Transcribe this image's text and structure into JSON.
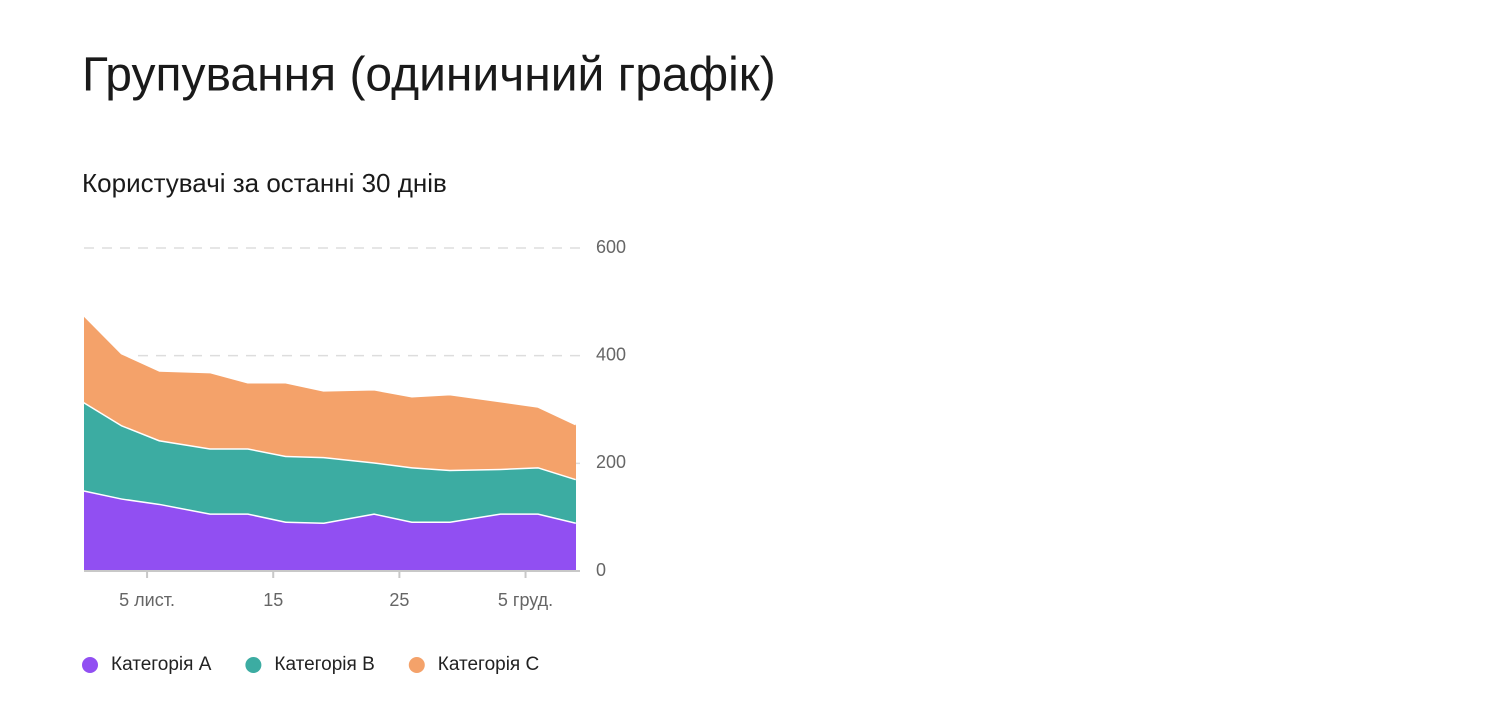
{
  "page_title": "Групування (одиничний графік)",
  "chart_data": {
    "type": "stacked_area",
    "title": "Користувачі за останні 30 днів",
    "x": [
      "10-31",
      "11-03",
      "11-06",
      "11-10",
      "11-13",
      "11-16",
      "11-19",
      "11-23",
      "11-26",
      "11-29",
      "12-03",
      "12-06",
      "12-09"
    ],
    "series": [
      {
        "name": "Категорія A",
        "color": "#914ff2",
        "values": [
          150,
          135,
          125,
          107,
          107,
          92,
          90,
          107,
          92,
          92,
          107,
          107,
          90
        ]
      },
      {
        "name": "Категорія B",
        "color": "#3caca2",
        "values": [
          164,
          136,
          118,
          121,
          121,
          122,
          122,
          95,
          101,
          96,
          83,
          86,
          81
        ]
      },
      {
        "name": "Категорія C",
        "color": "#f4a26a",
        "values": [
          162,
          134,
          130,
          142,
          123,
          137,
          124,
          136,
          132,
          141,
          126,
          113,
          102
        ]
      }
    ],
    "xlim": [
      "10-31",
      "12-09"
    ],
    "xticks": [
      {
        "value": "11-05",
        "label": "5 лист."
      },
      {
        "value": "11-15",
        "label": "15"
      },
      {
        "value": "11-25",
        "label": "25"
      },
      {
        "value": "12-05",
        "label": "5 груд."
      }
    ],
    "ylim": [
      0,
      600
    ],
    "yticks": [
      0,
      200,
      400,
      600
    ],
    "grid": true,
    "legend": "bottom"
  }
}
